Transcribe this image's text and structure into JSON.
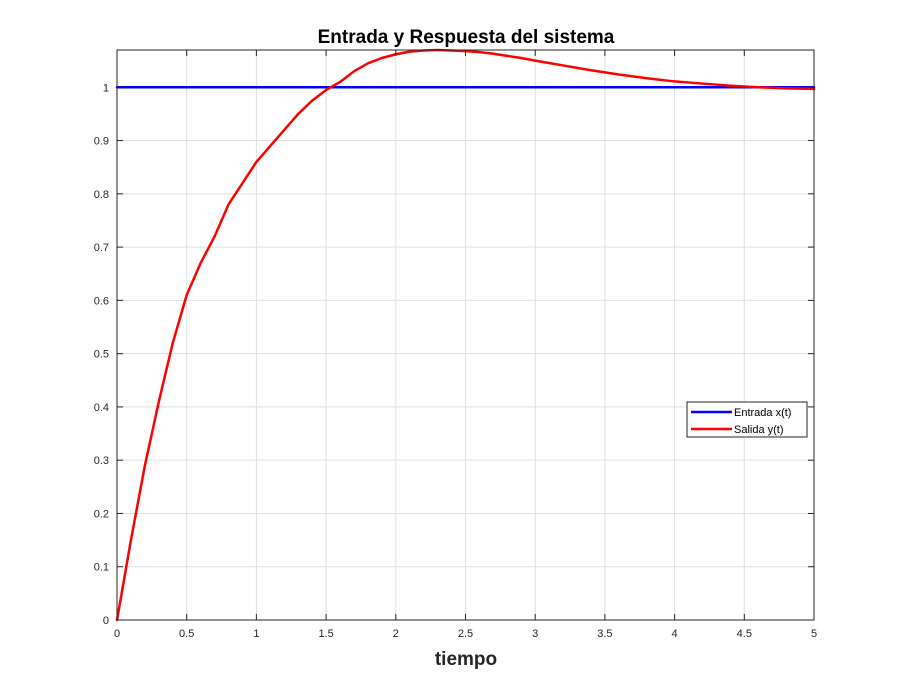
{
  "chart_data": {
    "type": "line",
    "title": "Entrada y Respuesta del sistema",
    "xlabel": "tiempo",
    "ylabel": "",
    "xlim": [
      0,
      5
    ],
    "ylim": [
      0,
      1.07
    ],
    "xticks": [
      0,
      0.5,
      1,
      1.5,
      2,
      2.5,
      3,
      3.5,
      4,
      4.5,
      5
    ],
    "xtick_labels": [
      "0",
      "0.5",
      "1",
      "1.5",
      "2",
      "2.5",
      "3",
      "3.5",
      "4",
      "4.5",
      "5"
    ],
    "yticks": [
      0,
      0.1,
      0.2,
      0.3,
      0.4,
      0.5,
      0.6,
      0.7,
      0.8,
      0.9,
      1
    ],
    "ytick_labels": [
      "0",
      "0.1",
      "0.2",
      "0.3",
      "0.4",
      "0.5",
      "0.6",
      "0.7",
      "0.8",
      "0.9",
      "1"
    ],
    "grid": true,
    "legend_location": "east",
    "series": [
      {
        "name": "Entrada x(t)",
        "color": "#0000ff",
        "x": [
          0,
          5
        ],
        "y": [
          1,
          1
        ]
      },
      {
        "name": "Salida y(t)",
        "color": "#ff0000",
        "x": [
          0,
          0.1,
          0.2,
          0.3,
          0.4,
          0.5,
          0.6,
          0.7,
          0.8,
          0.9,
          1.0,
          1.1,
          1.2,
          1.3,
          1.4,
          1.5,
          1.6,
          1.7,
          1.8,
          1.9,
          2.0,
          2.1,
          2.2,
          2.3,
          2.4,
          2.5,
          2.6,
          2.7,
          2.8,
          2.9,
          3.0,
          3.2,
          3.4,
          3.6,
          3.8,
          4.0,
          4.2,
          4.4,
          4.6,
          4.8,
          5.0
        ],
        "y": [
          0,
          0.15,
          0.29,
          0.41,
          0.52,
          0.61,
          0.67,
          0.72,
          0.78,
          0.82,
          0.86,
          0.89,
          0.92,
          0.95,
          0.975,
          0.995,
          1.01,
          1.03,
          1.045,
          1.055,
          1.062,
          1.067,
          1.069,
          1.07,
          1.069,
          1.068,
          1.066,
          1.063,
          1.059,
          1.055,
          1.05,
          1.041,
          1.032,
          1.024,
          1.017,
          1.011,
          1.007,
          1.003,
          1.0,
          0.998,
          0.997
        ]
      }
    ]
  }
}
